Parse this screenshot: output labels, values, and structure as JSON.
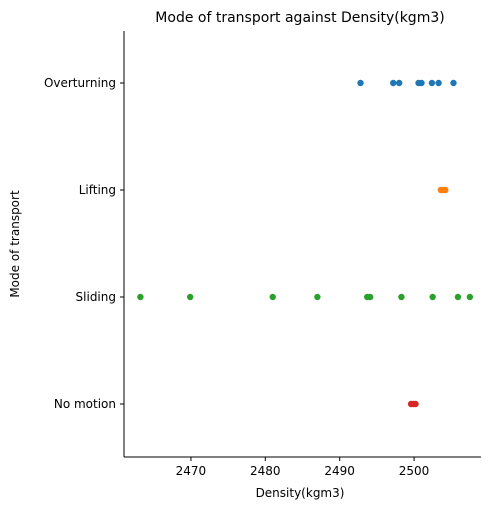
{
  "chart_data": {
    "type": "scatter",
    "title": "Mode of transport against Density(kgm3)",
    "xlabel": "Density(kgm3)",
    "ylabel": "Mode of transport",
    "xlim": [
      2461,
      2509
    ],
    "xticks": [
      2470,
      2480,
      2490,
      2500
    ],
    "categories": [
      "Overturning",
      "Lifting",
      "Sliding",
      "No motion"
    ],
    "grid": false,
    "legend": "none",
    "series": [
      {
        "category": "Overturning",
        "color": "#1f77b4",
        "x": [
          2492.8,
          2497.2,
          2498.0,
          2500.6,
          2501.0,
          2502.4,
          2503.3,
          2505.3
        ]
      },
      {
        "category": "Lifting",
        "color": "#ff7f0e",
        "x": [
          2503.6,
          2503.9,
          2504.2
        ]
      },
      {
        "category": "Sliding",
        "color": "#2ca02c",
        "x": [
          2463.2,
          2469.9,
          2481.0,
          2487.0,
          2493.7,
          2494.1,
          2498.3,
          2502.5,
          2505.9,
          2507.5
        ]
      },
      {
        "category": "No motion",
        "color": "#d62728",
        "x": [
          2499.6,
          2499.9,
          2500.2
        ]
      }
    ]
  }
}
